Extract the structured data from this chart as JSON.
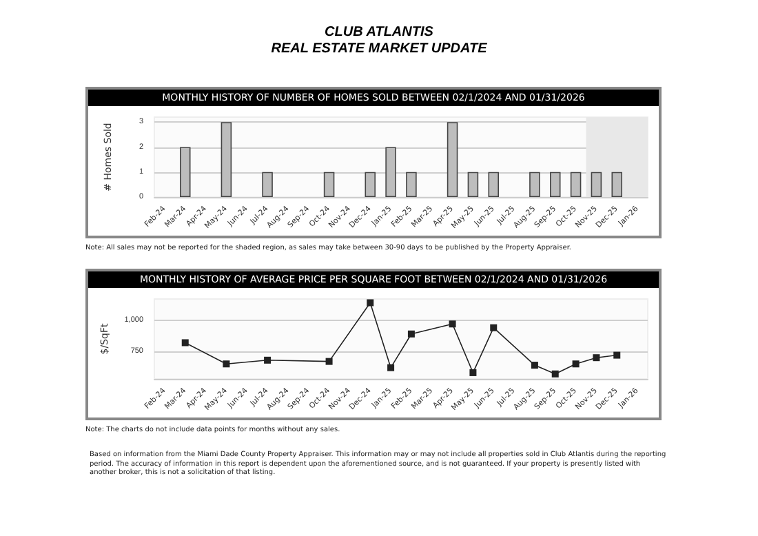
{
  "chart_data": [
    {
      "type": "other",
      "title": "CLUB ATLANTIS",
      "subtitle": "REAL ESTATE MARKET UPDATE"
    },
    {
      "type": "bar",
      "title": "MONTHLY HISTORY OF NUMBER OF HOMES SOLD BETWEEN 02/1/2024 AND 01/31/2026",
      "ylabel": "# Homes Sold",
      "categories": [
        "Feb-24",
        "Mar-24",
        "Apr-24",
        "May-24",
        "Jun-24",
        "Jul-24",
        "Aug-24",
        "Sep-24",
        "Oct-24",
        "Nov-24",
        "Dec-24",
        "Jan-25",
        "Feb-25",
        "Mar-25",
        "Apr-25",
        "May-25",
        "Jun-25",
        "Jul-25",
        "Aug-25",
        "Sep-25",
        "Oct-25",
        "Nov-25",
        "Dec-25",
        "Jan-26"
      ],
      "values": [
        0,
        2,
        0,
        3,
        0,
        1,
        0,
        0,
        1,
        0,
        1,
        2,
        1,
        0,
        3,
        1,
        1,
        0,
        1,
        1,
        1,
        1,
        1,
        0
      ],
      "color": "#bdbdbd",
      "ylim": [
        0,
        3.2
      ],
      "yticks": [
        0,
        1,
        2,
        3
      ],
      "grid": "y",
      "bands": [
        {
          "axis": "x",
          "from": "Nov-25",
          "to": "Jan-26",
          "color": "#e8e8e8"
        }
      ],
      "annotations": [
        "Note: All sales may not be reported for the shaded region, as sales may take between 30-90 days to be published by the Property Appraiser."
      ]
    },
    {
      "type": "line",
      "title": "MONTHLY HISTORY OF AVERAGE PRICE PER SQUARE FOOT BETWEEN 02/1/2024 AND 01/31/2026",
      "ylabel": "$/SqFt",
      "categories": [
        "Feb-24",
        "Mar-24",
        "Apr-24",
        "May-24",
        "Jun-24",
        "Jul-24",
        "Aug-24",
        "Sep-24",
        "Oct-24",
        "Nov-24",
        "Dec-24",
        "Jan-25",
        "Feb-25",
        "Mar-25",
        "Apr-25",
        "May-25",
        "Jun-25",
        "Jul-25",
        "Aug-25",
        "Sep-25",
        "Oct-25",
        "Nov-25",
        "Dec-25",
        "Jan-26"
      ],
      "values": [
        null,
        820,
        null,
        650,
        null,
        680,
        null,
        null,
        670,
        null,
        1140,
        620,
        890,
        null,
        970,
        580,
        940,
        null,
        640,
        570,
        650,
        700,
        720,
        null
      ],
      "color": "#222222",
      "marker": "square",
      "line_style": "solid",
      "ylim": [
        530,
        1170
      ],
      "yticks": [
        {
          "value": 750,
          "label": "750"
        },
        {
          "value": 1000,
          "label": "1,000"
        }
      ],
      "grid": "y",
      "annotations": [
        "Note: The charts do not include data points for months without any sales.",
        "Based on information from the Miami Dade County Property Appraiser. This information may or may not include all properties sold in Club Atlantis during the reporting period. The accuracy of information in this report is dependent upon the aforementioned source, and is not guaranteed. If your property is presently listed with another broker, this is not a solicitation of that listing."
      ]
    }
  ]
}
